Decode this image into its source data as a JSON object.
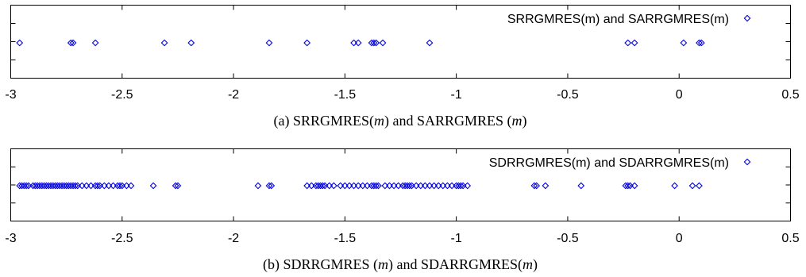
{
  "colors": {
    "marker": "#0000e0",
    "axis": "#000000"
  },
  "chart_data": [
    {
      "type": "scatter",
      "marker": "diamond",
      "legend_label": "SRRGMRES(m) and SARRGMRES(m)",
      "legend_position": "top-right",
      "caption": {
        "prefix": "(a)  SRRGMRES(",
        "m1": "m",
        "mid": ") and SARRGMRES (",
        "m2": "m",
        "suffix": ")"
      },
      "xlim": [
        -3,
        0.5
      ],
      "xticks": [
        -3,
        -2.5,
        -2,
        -1.5,
        -1,
        -0.5,
        0,
        0.5
      ],
      "xtick_labels": [
        "-3",
        "-2.5",
        "-2",
        "-1.5",
        "-1",
        "-0.5",
        "0",
        "0.5"
      ],
      "y": 0,
      "x": [
        -2.96,
        -2.73,
        -2.72,
        -2.62,
        -2.31,
        -2.19,
        -1.84,
        -1.67,
        -1.46,
        -1.44,
        -1.38,
        -1.37,
        -1.36,
        -1.33,
        -1.12,
        -0.23,
        -0.2,
        0.02,
        0.09,
        0.1
      ]
    },
    {
      "type": "scatter",
      "marker": "diamond",
      "legend_label": "SDRRGMRES(m) and SDARRGMRES(m)",
      "legend_position": "top-right",
      "caption": {
        "prefix": "(b)  SDRRGMRES (",
        "m1": "m",
        "mid": ") and SDARRGMRES(",
        "m2": "m",
        "suffix": ")"
      },
      "xlim": [
        -3,
        0.5
      ],
      "xticks": [
        -3,
        -2.5,
        -2,
        -1.5,
        -1,
        -0.5,
        0,
        0.5
      ],
      "xtick_labels": [
        "-3",
        "-2.5",
        "-2",
        "-1.5",
        "-1",
        "-0.5",
        "0",
        "0.5"
      ],
      "y": 0,
      "x": [
        -2.96,
        -2.95,
        -2.94,
        -2.93,
        -2.92,
        -2.9,
        -2.89,
        -2.88,
        -2.87,
        -2.86,
        -2.85,
        -2.84,
        -2.83,
        -2.82,
        -2.81,
        -2.8,
        -2.79,
        -2.78,
        -2.77,
        -2.76,
        -2.75,
        -2.74,
        -2.73,
        -2.72,
        -2.71,
        -2.7,
        -2.68,
        -2.66,
        -2.64,
        -2.62,
        -2.61,
        -2.6,
        -2.58,
        -2.56,
        -2.54,
        -2.52,
        -2.51,
        -2.5,
        -2.48,
        -2.46,
        -2.36,
        -2.26,
        -2.25,
        -1.89,
        -1.84,
        -1.83,
        -1.67,
        -1.65,
        -1.63,
        -1.62,
        -1.61,
        -1.6,
        -1.59,
        -1.57,
        -1.55,
        -1.52,
        -1.5,
        -1.48,
        -1.46,
        -1.44,
        -1.42,
        -1.4,
        -1.38,
        -1.37,
        -1.36,
        -1.35,
        -1.32,
        -1.3,
        -1.28,
        -1.26,
        -1.24,
        -1.23,
        -1.22,
        -1.21,
        -1.2,
        -1.18,
        -1.16,
        -1.14,
        -1.12,
        -1.1,
        -1.08,
        -1.06,
        -1.04,
        -1.02,
        -1.0,
        -0.99,
        -0.98,
        -0.97,
        -0.95,
        -0.65,
        -0.64,
        -0.6,
        -0.44,
        -0.24,
        -0.23,
        -0.22,
        -0.2,
        -0.02,
        0.06,
        0.09
      ]
    }
  ]
}
